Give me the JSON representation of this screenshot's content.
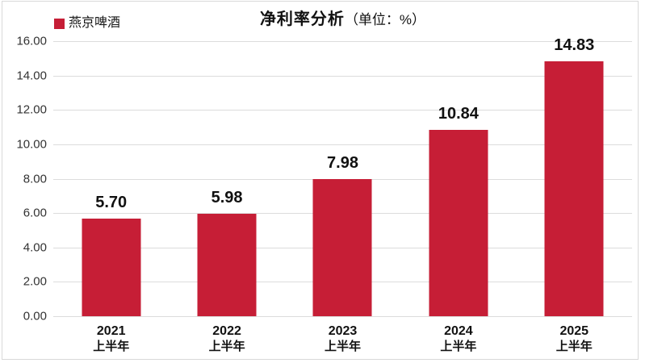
{
  "chart": {
    "title_main": "净利率分析",
    "title_unit": "（单位：%）",
    "legend": {
      "label": "燕京啤酒"
    }
  },
  "colors": {
    "bar_red": "#c61e36",
    "gridline": "#dcdcdc",
    "frame_border": "#d9d9d9",
    "tick_text": "#333333",
    "label_text": "#111111"
  },
  "chart_data": {
    "type": "bar",
    "title": "净利率分析（单位：%）",
    "legend_entries": [
      "燕京啤酒"
    ],
    "legend_position": "top-left",
    "grid": "horizontal",
    "categories": [
      {
        "line1": "2021",
        "line2": "上半年"
      },
      {
        "line1": "2022",
        "line2": "上半年"
      },
      {
        "line1": "2023",
        "line2": "上半年"
      },
      {
        "line1": "2024",
        "line2": "上半年"
      },
      {
        "line1": "2025",
        "line2": "上半年"
      }
    ],
    "series": [
      {
        "name": "燕京啤酒",
        "color": "#c61e36",
        "values": [
          5.7,
          5.98,
          7.98,
          10.84,
          14.83
        ],
        "value_labels": [
          "5.70",
          "5.98",
          "7.98",
          "10.84",
          "14.83"
        ]
      }
    ],
    "ylabel": "",
    "xlabel": "",
    "ylim": [
      0,
      16
    ],
    "ytick_step": 2,
    "ytick_labels": [
      "0.00",
      "2.00",
      "4.00",
      "6.00",
      "8.00",
      "10.00",
      "12.00",
      "14.00",
      "16.00"
    ]
  }
}
